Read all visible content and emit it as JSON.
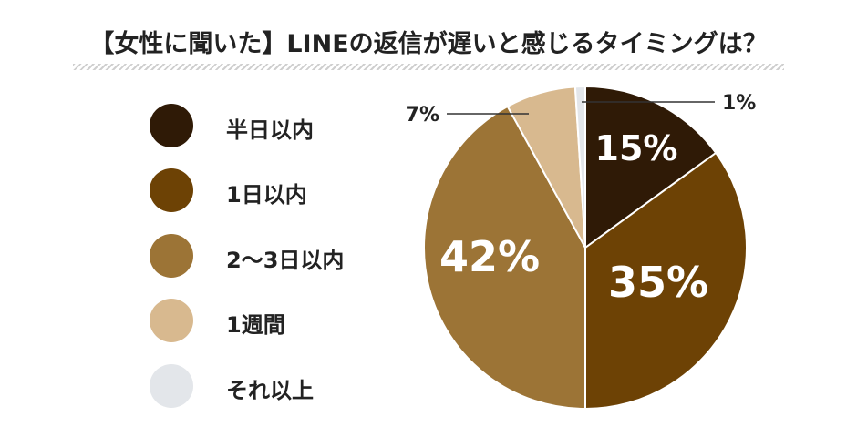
{
  "title": "【女性に聞いた】LINEの返信が遅いと感じるタイミングは？",
  "chart_data": {
    "type": "pie",
    "title": "【女性に聞いた】LINEの返信が遅いと感じるタイミングは？",
    "legend_position": "left",
    "slices": [
      {
        "label": "半日以内",
        "value": 15,
        "value_label": "15%",
        "color": "#2f1a06"
      },
      {
        "label": "1日以内",
        "value": 35,
        "value_label": "35%",
        "color": "#6d4205"
      },
      {
        "label": "2〜3日以内",
        "value": 42,
        "value_label": "42%",
        "color": "#9c7436"
      },
      {
        "label": "1週間",
        "value": 7,
        "value_label": "7%",
        "color": "#d8b98f"
      },
      {
        "label": "それ以上",
        "value": 1,
        "value_label": "1%",
        "color": "#e3e6ea"
      }
    ]
  }
}
